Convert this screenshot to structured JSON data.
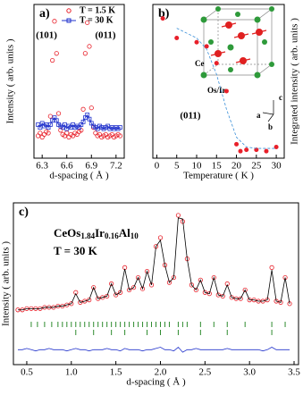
{
  "chart_data": [
    {
      "type": "scatter",
      "panel_label": "a)",
      "x_label": "d-spacing ( Å )",
      "y_label": "Intensity ( arb. units )",
      "xlim": [
        6.2,
        7.3
      ],
      "xticks": [
        6.3,
        6.6,
        6.9,
        7.2
      ],
      "ylim": [
        0,
        110
      ],
      "legend": "upper right",
      "annotations": [
        "(101)",
        "(011)"
      ],
      "x": [
        6.25,
        6.275,
        6.3,
        6.325,
        6.35,
        6.375,
        6.4,
        6.425,
        6.45,
        6.475,
        6.5,
        6.525,
        6.55,
        6.575,
        6.6,
        6.625,
        6.65,
        6.675,
        6.7,
        6.725,
        6.75,
        6.775,
        6.8,
        6.825,
        6.85,
        6.875,
        6.9,
        6.925,
        6.95,
        6.975,
        7.0,
        7.025,
        7.05,
        7.075,
        7.1,
        7.125,
        7.15,
        7.175,
        7.2,
        7.225,
        7.25
      ],
      "series": [
        {
          "name": "T = 1.5 K",
          "color": "#e8202a",
          "marker": "circle",
          "line": false,
          "values": [
            16,
            18,
            15,
            17,
            19,
            18,
            30,
            70,
            98,
            75,
            32,
            20,
            17,
            16,
            18,
            15,
            17,
            16,
            18,
            17,
            19,
            20,
            35,
            75,
            97,
            80,
            36,
            22,
            18,
            16,
            17,
            15,
            16,
            17,
            15,
            16,
            17,
            15,
            16,
            17,
            16
          ]
        },
        {
          "name": "T = 30 K",
          "color": "#2233cc",
          "marker": "square",
          "line": true,
          "values": [
            24,
            22,
            25,
            23,
            24,
            22,
            24,
            27,
            29,
            27,
            24,
            23,
            22,
            24,
            21,
            23,
            22,
            24,
            22,
            23,
            22,
            24,
            26,
            29,
            31,
            28,
            25,
            23,
            22,
            21,
            23,
            22,
            21,
            22,
            23,
            21,
            22,
            21,
            22,
            21,
            22
          ]
        }
      ]
    },
    {
      "type": "scatter",
      "panel_label": "b)",
      "x_label": "Temperature ( K )",
      "y_label": "Integrated intensity ( arb. units )",
      "xlim": [
        -1,
        32
      ],
      "xticks": [
        0,
        5,
        10,
        15,
        20,
        25,
        30
      ],
      "ylim": [
        0,
        1.1
      ],
      "annotations": [
        "(011)"
      ],
      "inset_labels": [
        "Ce",
        "Os/Ir",
        "a",
        "b",
        "c"
      ],
      "series": [
        {
          "color": "#e8202a",
          "marker": "dot",
          "line": false,
          "x": [
            1.5,
            5,
            10,
            12.5,
            15,
            17.5,
            20,
            21,
            22.5,
            25,
            27.5,
            30
          ],
          "values": [
            1.0,
            0.86,
            0.83,
            0.8,
            0.68,
            0.48,
            0.1,
            0.05,
            0.06,
            0.06,
            0.05,
            0.08
          ]
        },
        {
          "color": "#3a8fd8",
          "marker": null,
          "line": true,
          "dashed": true,
          "x": [
            5,
            10,
            12.5,
            15,
            17.5,
            20,
            22.5,
            25,
            30
          ],
          "values": [
            0.93,
            0.86,
            0.78,
            0.6,
            0.35,
            0.15,
            0.08,
            0.07,
            0.07
          ]
        }
      ]
    },
    {
      "type": "line",
      "panel_label": "c)",
      "title_parts": [
        "CeOs",
        "1.84",
        "Ir",
        "0.16",
        "Al",
        "10"
      ],
      "subtitle": "T = 30 K",
      "x_label": "d-spacing ( Å )",
      "y_label": "Intensity ( arb. units )",
      "xlim": [
        0.35,
        3.55
      ],
      "xticks": [
        0.5,
        {
          "value": 1,
          "label": "1.0"
        },
        1.5,
        {
          "value": 2,
          "label": "2.0"
        },
        2.5,
        {
          "value": 3,
          "label": "3.0"
        },
        3.5
      ],
      "ylim": [
        -40,
        90
      ],
      "x": [
        0.4,
        0.45,
        0.5,
        0.55,
        0.6,
        0.65,
        0.7,
        0.75,
        0.8,
        0.85,
        0.9,
        0.95,
        1.0,
        1.05,
        1.1,
        1.15,
        1.2,
        1.25,
        1.3,
        1.35,
        1.4,
        1.45,
        1.5,
        1.55,
        1.6,
        1.65,
        1.7,
        1.75,
        1.8,
        1.85,
        1.9,
        1.95,
        2.0,
        2.05,
        2.1,
        2.15,
        2.2,
        2.25,
        2.3,
        2.35,
        2.4,
        2.45,
        2.5,
        2.55,
        2.6,
        2.65,
        2.7,
        2.75,
        2.8,
        2.85,
        2.9,
        2.95,
        3.0,
        3.05,
        3.1,
        3.15,
        3.2,
        3.25,
        3.3,
        3.35,
        3.4,
        3.45
      ],
      "series": [
        {
          "color": "#e8202a",
          "marker": "circle",
          "line": false,
          "values": [
            4,
            4,
            5,
            5,
            5,
            5,
            6,
            6,
            6,
            7,
            7,
            8,
            9,
            18,
            10,
            11,
            12,
            22,
            13,
            14,
            15,
            25,
            16,
            18,
            38,
            20,
            22,
            30,
            21,
            35,
            24,
            55,
            62,
            40,
            26,
            30,
            80,
            75,
            45,
            24,
            20,
            28,
            18,
            17,
            30,
            16,
            15,
            25,
            14,
            13,
            13,
            20,
            12,
            12,
            11,
            11,
            12,
            38,
            11,
            10,
            30,
            9
          ]
        },
        {
          "color": "#000000",
          "marker": null,
          "line": true,
          "values": [
            4,
            4,
            5,
            5,
            5,
            5,
            6,
            6,
            6,
            7,
            7,
            8,
            9,
            17,
            10,
            11,
            12,
            22,
            13,
            14,
            15,
            25,
            16,
            18,
            37,
            20,
            22,
            30,
            21,
            35,
            24,
            55,
            60,
            40,
            26,
            30,
            78,
            77,
            45,
            24,
            20,
            28,
            18,
            17,
            30,
            16,
            15,
            24,
            14,
            13,
            13,
            20,
            12,
            12,
            11,
            11,
            12,
            36,
            11,
            10,
            30,
            9
          ]
        },
        {
          "color": "#2233cc",
          "marker": null,
          "line": true,
          "values": [
            -28,
            -28,
            -27,
            -28,
            -29,
            -28,
            -28,
            -27,
            -28,
            -28,
            -28,
            -29,
            -28,
            -27,
            -28,
            -28,
            -29,
            -28,
            -28,
            -28,
            -27,
            -28,
            -28,
            -29,
            -27,
            -28,
            -28,
            -28,
            -29,
            -28,
            -28,
            -27,
            -26,
            -28,
            -28,
            -29,
            -26,
            -30,
            -28,
            -28,
            -27,
            -28,
            -28,
            -28,
            -28,
            -28,
            -28,
            -27,
            -28,
            -28,
            -28,
            -28,
            -28,
            -28,
            -28,
            -29,
            -28,
            -26,
            -28,
            -28,
            -28,
            -28
          ]
        }
      ],
      "bragg_rows": [
        {
          "color": "#2e8b2e",
          "positions": [
            0.55,
            0.62,
            0.7,
            0.78,
            0.85,
            0.9,
            0.95,
            1.0,
            1.05,
            1.1,
            1.15,
            1.2,
            1.25,
            1.3,
            1.35,
            1.4,
            1.45,
            1.5,
            1.55,
            1.6,
            1.65,
            1.7,
            1.75,
            1.8,
            1.85,
            1.9,
            1.95,
            2.0,
            2.05,
            2.1,
            2.2,
            2.25,
            2.3,
            2.45,
            2.6,
            2.75,
            2.95,
            3.25,
            3.4
          ]
        },
        {
          "color": "#2e8b2e",
          "positions": [
            1.05,
            1.25,
            1.45,
            1.6,
            1.85,
            2.0,
            2.2,
            2.45,
            2.75,
            3.25
          ]
        }
      ]
    }
  ]
}
